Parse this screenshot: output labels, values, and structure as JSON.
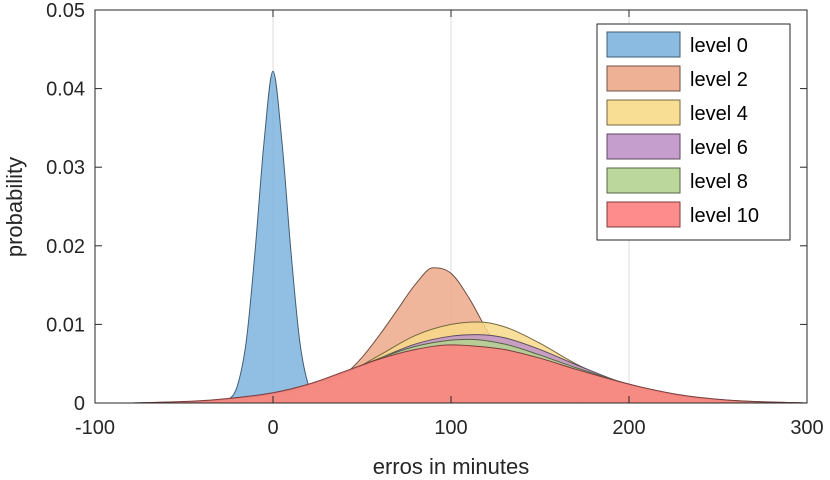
{
  "chart_data": {
    "type": "area",
    "xlabel": "erros in minutes",
    "ylabel": "probability",
    "xlim": [
      -100,
      300
    ],
    "ylim": [
      0,
      0.05
    ],
    "xticks": [
      -100,
      0,
      100,
      200,
      300
    ],
    "xtick_labels": [
      "-100",
      "0",
      "100",
      "200",
      "300"
    ],
    "yticks": [
      0,
      0.01,
      0.02,
      0.03,
      0.04,
      0.05
    ],
    "ytick_labels": [
      "0",
      "0.01",
      "0.02",
      "0.03",
      "0.04",
      "0.05"
    ],
    "grid": "x-only",
    "legend_position": "top-right",
    "series": [
      {
        "name": "level 0",
        "color": "#7eb4de",
        "edge": "#405d75",
        "x": [
          -30,
          -25,
          -20,
          -15,
          -10,
          -5,
          0,
          5,
          10,
          15,
          20,
          25,
          30
        ],
        "y": [
          0.0,
          0.0004,
          0.0022,
          0.0079,
          0.0195,
          0.0333,
          0.0422,
          0.0333,
          0.0195,
          0.0079,
          0.0022,
          0.0004,
          0.0
        ]
      },
      {
        "name": "level 2",
        "color": "#eda98a",
        "edge": "#6e5045",
        "x": [
          -40,
          -20,
          0,
          20,
          40,
          50,
          60,
          70,
          80,
          90,
          100,
          110,
          120,
          130,
          140,
          160,
          180,
          200,
          220
        ],
        "y": [
          0.0,
          0.0001,
          0.0003,
          0.0012,
          0.0036,
          0.0058,
          0.0087,
          0.0119,
          0.0151,
          0.0172,
          0.0165,
          0.0134,
          0.0093,
          0.0055,
          0.0029,
          0.0007,
          0.0001,
          0.0,
          0.0
        ]
      },
      {
        "name": "level 4",
        "color": "#f7d98a",
        "edge": "#74673f",
        "x": [
          -60,
          -20,
          0,
          20,
          40,
          60,
          80,
          100,
          115,
          130,
          150,
          170,
          200,
          230,
          260,
          300
        ],
        "y": [
          0.0,
          0.0003,
          0.0008,
          0.0018,
          0.0036,
          0.0061,
          0.0086,
          0.01,
          0.0103,
          0.0097,
          0.0076,
          0.005,
          0.002,
          0.0006,
          0.0001,
          0.0
        ]
      },
      {
        "name": "level 6",
        "color": "#bf94c9",
        "edge": "#5d4a62",
        "x": [
          -60,
          -20,
          0,
          20,
          40,
          60,
          80,
          100,
          115,
          130,
          150,
          170,
          200,
          230,
          260,
          300
        ],
        "y": [
          0.0,
          0.0004,
          0.001,
          0.002,
          0.0037,
          0.0057,
          0.0075,
          0.0085,
          0.0087,
          0.0083,
          0.0068,
          0.0049,
          0.0023,
          0.0008,
          0.0002,
          0.0
        ]
      },
      {
        "name": "level 8",
        "color": "#b5d391",
        "edge": "#566445",
        "x": [
          -80,
          -40,
          -20,
          0,
          20,
          40,
          60,
          80,
          100,
          110,
          130,
          150,
          170,
          200,
          230,
          260,
          300
        ],
        "y": [
          0.0,
          0.0002,
          0.0006,
          0.0012,
          0.0023,
          0.0039,
          0.0057,
          0.0072,
          0.008,
          0.0081,
          0.0075,
          0.0061,
          0.0045,
          0.0024,
          0.0009,
          0.0003,
          0.0
        ]
      },
      {
        "name": "level 10",
        "color": "#ff7f7f",
        "edge": "#7a3d3d",
        "x": [
          -80,
          -40,
          -20,
          0,
          20,
          40,
          60,
          80,
          100,
          110,
          130,
          150,
          170,
          200,
          230,
          260,
          300
        ],
        "y": [
          0.0,
          0.0003,
          0.0007,
          0.0013,
          0.0024,
          0.004,
          0.0056,
          0.0068,
          0.0074,
          0.0073,
          0.0068,
          0.0057,
          0.0043,
          0.0024,
          0.001,
          0.0003,
          0.0
        ]
      }
    ]
  }
}
